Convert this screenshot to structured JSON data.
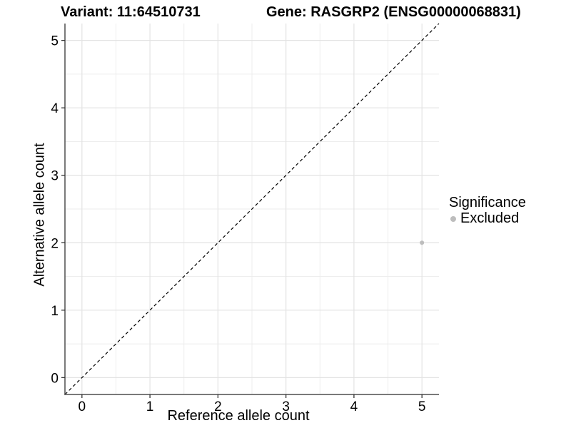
{
  "titles": {
    "variant": "Variant: 11:64510731",
    "gene": "Gene: RASGRP2 (ENSG00000068831)"
  },
  "chart_data": {
    "type": "scatter",
    "xlabel": "Reference allele count",
    "ylabel": "Alternative allele count",
    "xlim": [
      -0.25,
      5.25
    ],
    "ylim": [
      -0.25,
      5.25
    ],
    "x_ticks": [
      0,
      1,
      2,
      3,
      4,
      5
    ],
    "y_ticks": [
      0,
      1,
      2,
      3,
      4,
      5
    ],
    "minor_grid_step": 0.5,
    "grid": true,
    "reference_line": {
      "type": "identity",
      "style": "dashed",
      "color": "#000000"
    },
    "series": [
      {
        "name": "Excluded",
        "color": "#bdbdbd",
        "points": [
          {
            "x": 5,
            "y": 2
          }
        ]
      }
    ],
    "legend": {
      "title": "Significance",
      "position": "right",
      "items": [
        {
          "label": "Excluded",
          "color": "#bdbdbd"
        }
      ]
    },
    "colors": {
      "axis_line": "#4f4f4f",
      "tick_mark": "#333333",
      "grid_major": "#e3e3e3",
      "grid_minor": "#ededed",
      "text": "#000000",
      "background": "#ffffff"
    }
  }
}
